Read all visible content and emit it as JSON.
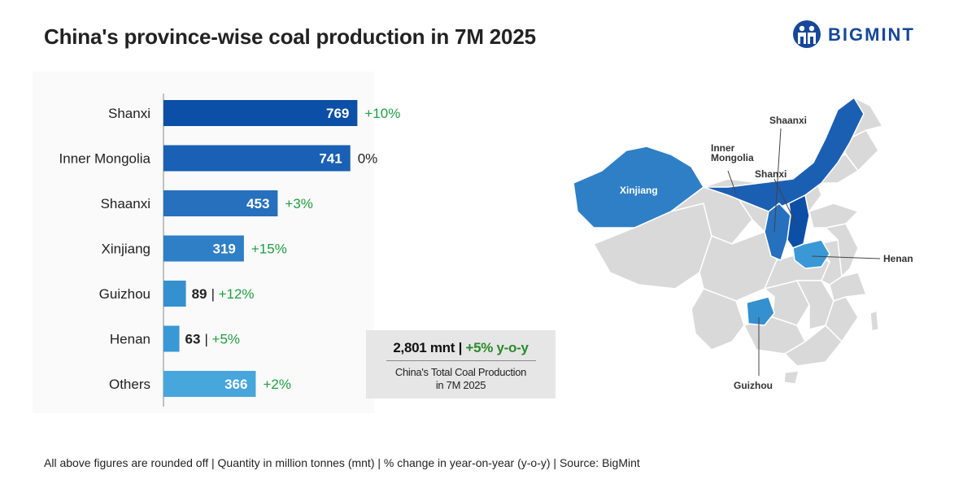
{
  "title": "China's province-wise coal production in 7M 2025",
  "logo": {
    "text": "BIGMINT",
    "color": "#16479a"
  },
  "chart_data": {
    "type": "bar",
    "orientation": "horizontal",
    "title": "China's province-wise coal production in 7M 2025",
    "categories": [
      "Shanxi",
      "Inner Mongolia",
      "Shaanxi",
      "Xinjiang",
      "Guizhou",
      "Henan",
      "Others"
    ],
    "values": [
      769,
      741,
      453,
      319,
      89,
      63,
      366
    ],
    "change_labels": [
      "+10%",
      "0%",
      "+3%",
      "+15%",
      "+12%",
      "+5%",
      "+2%"
    ],
    "change_values": [
      10,
      0,
      3,
      15,
      12,
      5,
      2
    ],
    "unit": "mnt",
    "xlim": [
      0,
      800
    ],
    "grid": false,
    "bar_colors": [
      "#0c4fa6",
      "#1a60b4",
      "#2670bd",
      "#2f7fc6",
      "#3590cf",
      "#3a98d6",
      "#47a6dc"
    ],
    "change_color_positive": "#1f9e3f"
  },
  "summary": {
    "total": "2,801 mnt",
    "separator": "|",
    "change": "+5% y-o-y",
    "line1": "China's Total Coal Production",
    "line2": "in 7M 2025"
  },
  "map": {
    "labels": {
      "xinjiang": "Xinjiang",
      "inner_mongolia_1": "Inner",
      "inner_mongolia_2": "Mongolia",
      "shaanxi": "Shaanxi",
      "shanxi": "Shanxi",
      "henan": "Henan",
      "guizhou": "Guizhou"
    },
    "colors": {
      "base": "#d9d9d9",
      "border": "#ffffff",
      "inner_mongolia": "#1b5fb3",
      "shanxi": "#0c4fa6",
      "shaanxi": "#2670bd",
      "xinjiang": "#2f7fc6",
      "henan": "#3a98d6",
      "guizhou": "#3590cf"
    }
  },
  "footnote": "All above figures are rounded off | Quantity in million tonnes (mnt) | % change in year-on-year (y-o-y) | Source: BigMint"
}
